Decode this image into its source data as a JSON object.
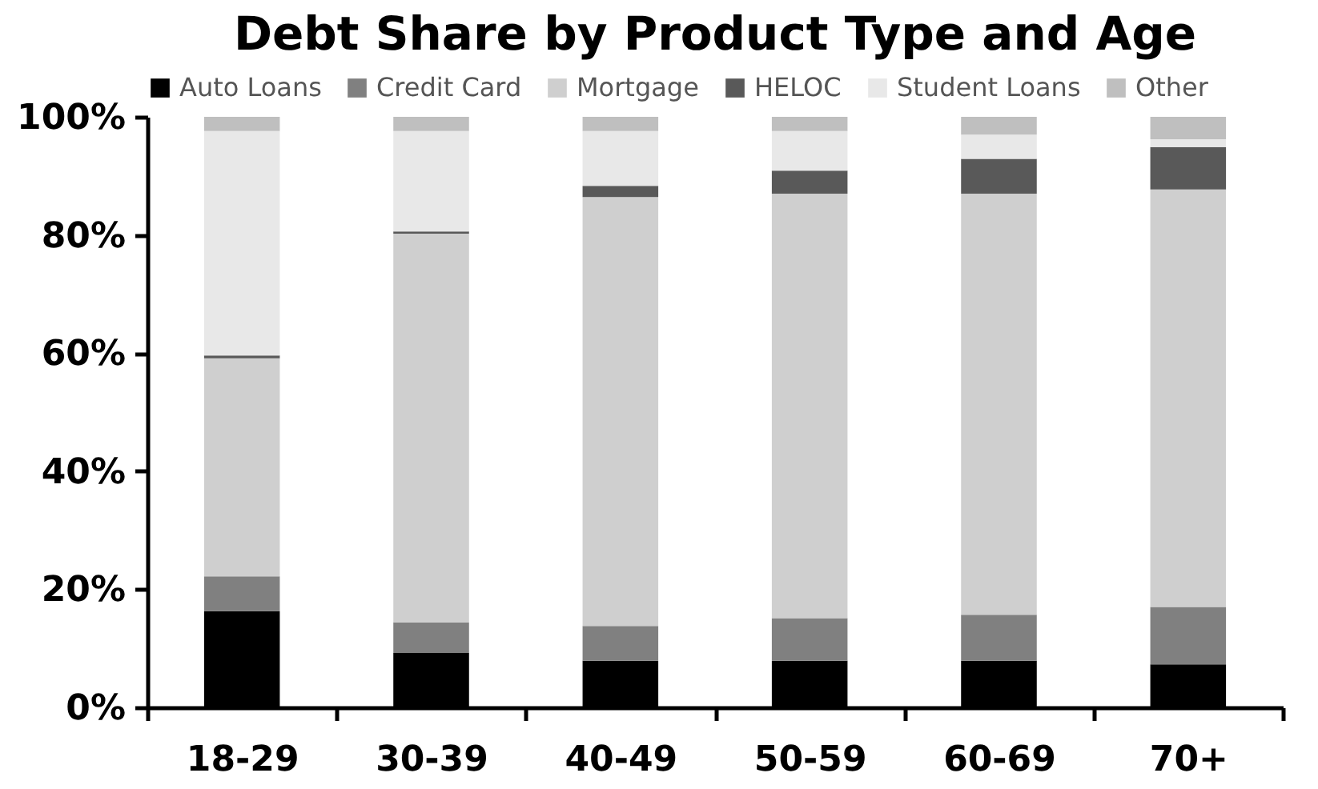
{
  "chart_data": {
    "type": "bar",
    "title": "Debt Share by Product Type and Age",
    "stacked": true,
    "legend": "top",
    "grid": false,
    "categories": [
      "18-29",
      "30-39",
      "40-49",
      "50-59",
      "60-69",
      "70+"
    ],
    "series": [
      {
        "name": "Auto Loans",
        "color": "#000000",
        "values": [
          16.3,
          9.2,
          7.9,
          7.9,
          7.9,
          7.3
        ]
      },
      {
        "name": "Credit Card",
        "color": "#808080",
        "values": [
          5.9,
          5.2,
          5.9,
          7.2,
          7.8,
          9.7
        ]
      },
      {
        "name": "Mortgage",
        "color": "#cfcfcf",
        "values": [
          36.9,
          65.8,
          72.6,
          71.9,
          71.3,
          70.7
        ]
      },
      {
        "name": "HELOC",
        "color": "#595959",
        "values": [
          0.5,
          0.4,
          1.9,
          3.9,
          5.9,
          7.2
        ]
      },
      {
        "name": "Student Loans",
        "color": "#e8e8e8",
        "values": [
          38,
          17,
          9.3,
          6.7,
          4.1,
          1.3
        ]
      },
      {
        "name": "Other",
        "color": "#bfbfbf",
        "values": [
          2.4,
          2.4,
          2.4,
          2.4,
          3.0,
          3.8
        ]
      }
    ],
    "ylim": [
      0,
      100
    ],
    "yticks": [
      {
        "value": 0,
        "label": "0%"
      },
      {
        "value": 20,
        "label": "20%"
      },
      {
        "value": 40,
        "label": "40%"
      },
      {
        "value": 60,
        "label": "60%"
      },
      {
        "value": 80,
        "label": "80%"
      },
      {
        "value": 100,
        "label": "100%"
      }
    ]
  }
}
